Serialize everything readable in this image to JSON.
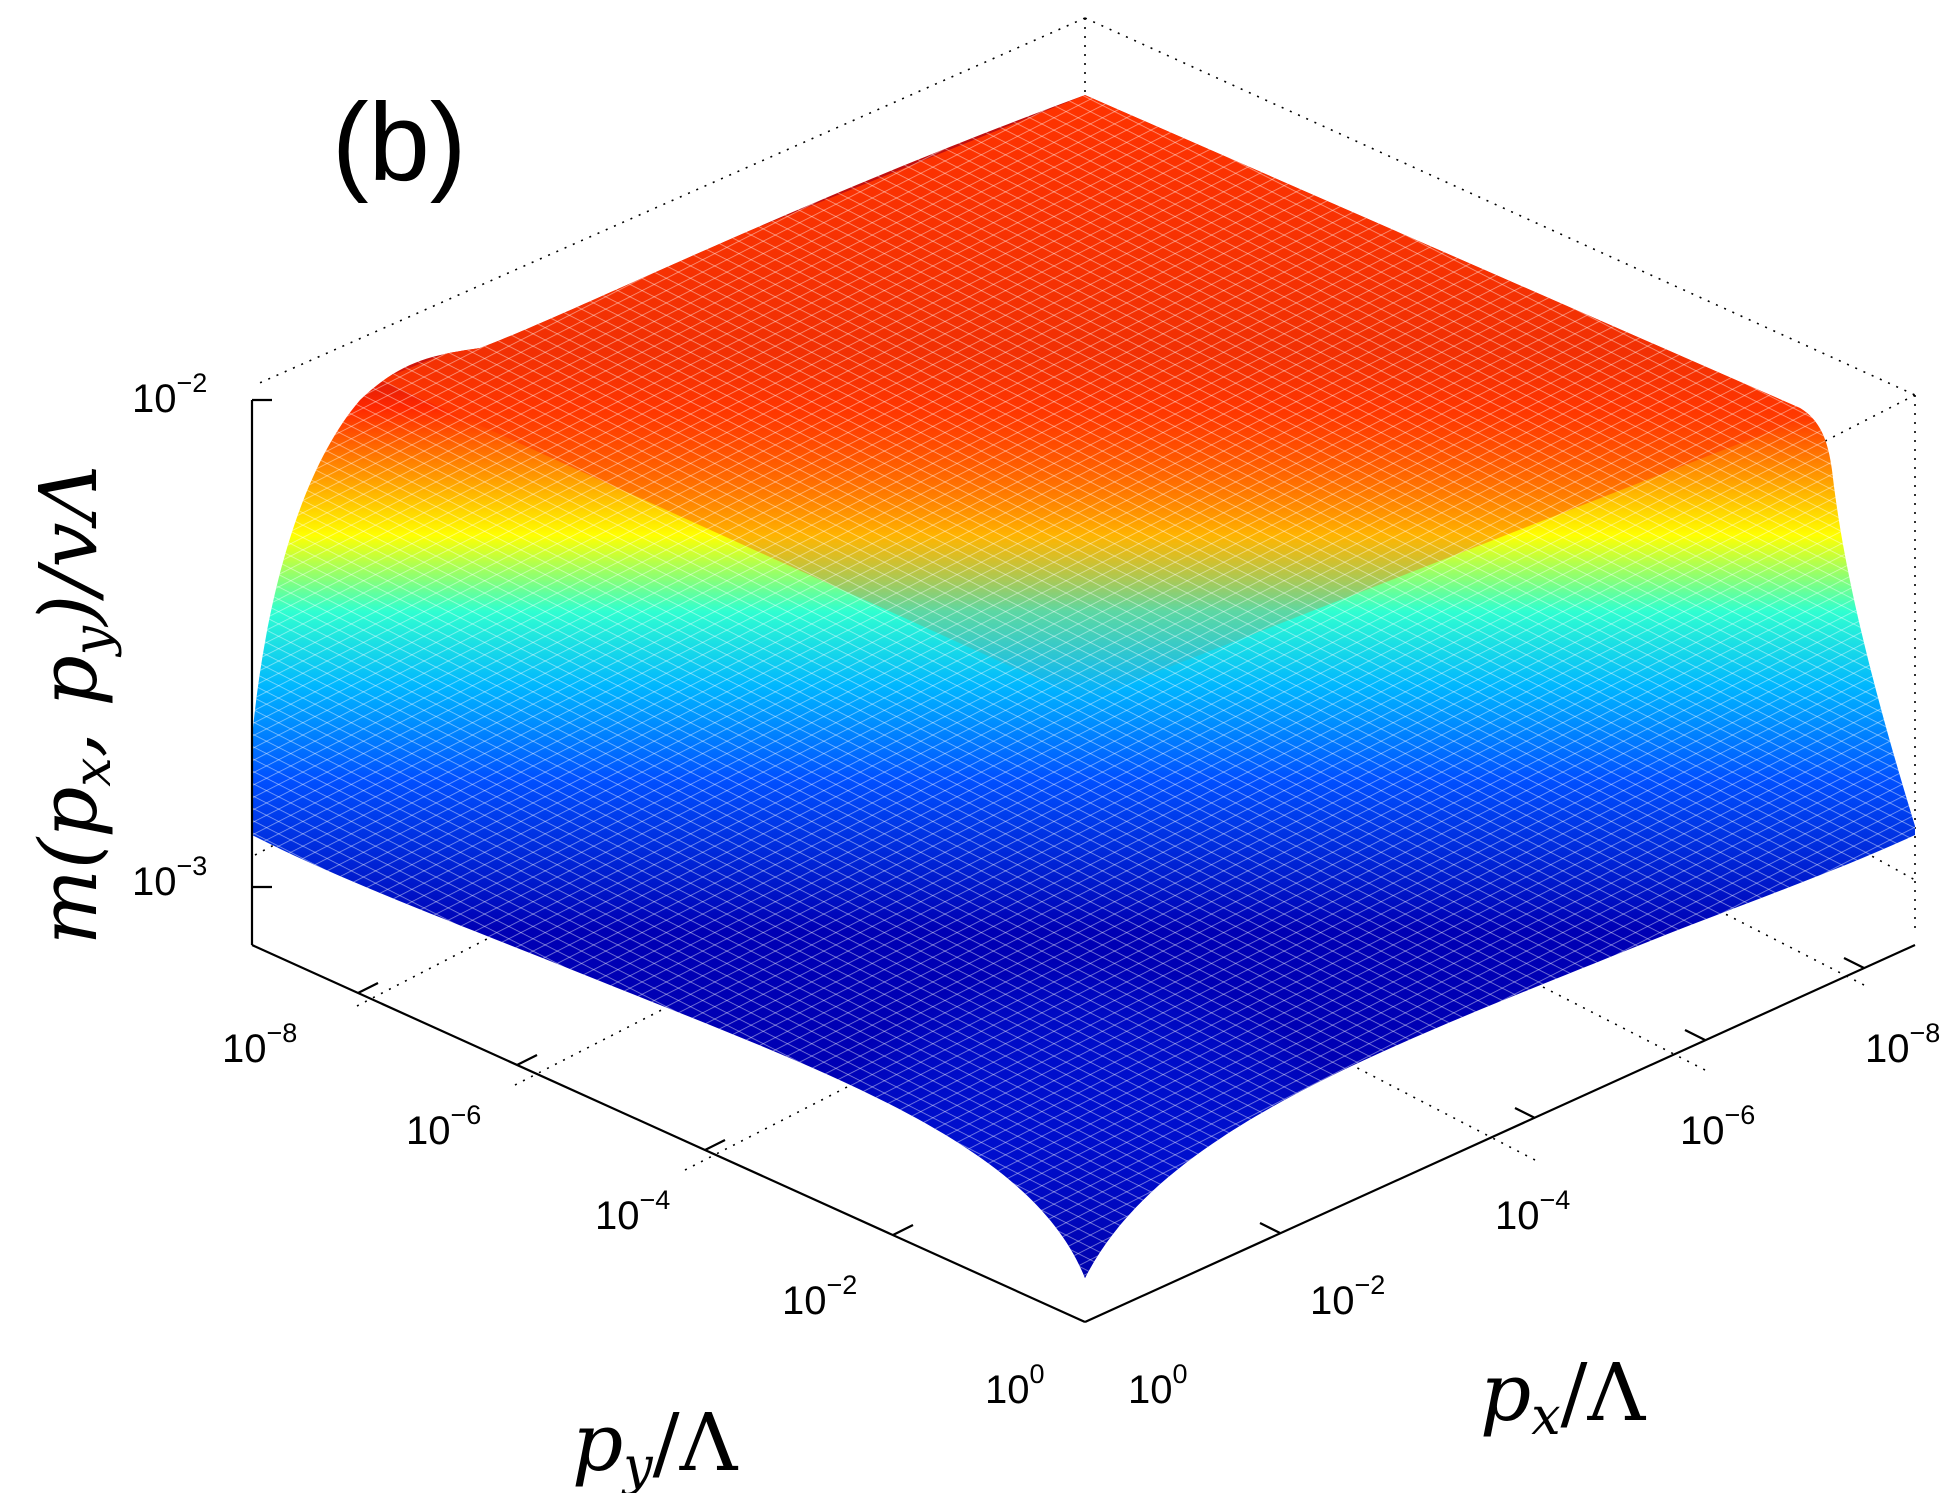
{
  "panel_label": "(b)",
  "chart_data": {
    "type": "surface",
    "colormap": "jet",
    "log_scale": {
      "x": true,
      "y": true,
      "z": true
    },
    "grid": false,
    "x_axis": {
      "label_var": "p",
      "label_sub": "x",
      "label_rest": "/Λ",
      "range": [
        1e-09,
        1
      ],
      "ticks": [
        {
          "base": "10",
          "exp": "0",
          "value": 1
        },
        {
          "base": "10",
          "exp": "−2",
          "value": 0.01
        },
        {
          "base": "10",
          "exp": "−4",
          "value": 0.0001
        },
        {
          "base": "10",
          "exp": "−6",
          "value": 1e-06
        },
        {
          "base": "10",
          "exp": "−8",
          "value": 1e-08
        }
      ]
    },
    "y_axis": {
      "label_var": "p",
      "label_sub": "y",
      "label_rest": "/Λ",
      "range": [
        1e-09,
        1
      ],
      "ticks": [
        {
          "base": "10",
          "exp": "0",
          "value": 1
        },
        {
          "base": "10",
          "exp": "−2",
          "value": 0.01
        },
        {
          "base": "10",
          "exp": "−4",
          "value": 0.0001
        },
        {
          "base": "10",
          "exp": "−6",
          "value": 1e-06
        },
        {
          "base": "10",
          "exp": "−8",
          "value": 1e-08
        }
      ]
    },
    "z_axis": {
      "label_pre": "m(p",
      "label_sub1": "x",
      "label_mid": ", p",
      "label_sub2": "y",
      "label_post": ")/vΛ",
      "range": [
        0.00075,
        0.01
      ],
      "ticks": [
        {
          "base": "10",
          "exp": "−2",
          "value": 0.01
        },
        {
          "base": "10",
          "exp": "−3",
          "value": 0.001
        }
      ]
    },
    "surface_samples": [
      {
        "px": 1e-09,
        "py": 1e-09,
        "m": 0.0098
      },
      {
        "px": 1e-09,
        "py": 1,
        "m": 0.00128
      },
      {
        "px": 1,
        "py": 1e-09,
        "m": 0.00128
      },
      {
        "px": 1,
        "py": 1,
        "m": 0.00076
      },
      {
        "px": 1e-09,
        "py": 0.0001,
        "m": 0.0095
      },
      {
        "px": 0.0001,
        "py": 1e-09,
        "m": 0.0096
      },
      {
        "px": 0.01,
        "py": 0.01,
        "m": 0.0024
      }
    ]
  }
}
